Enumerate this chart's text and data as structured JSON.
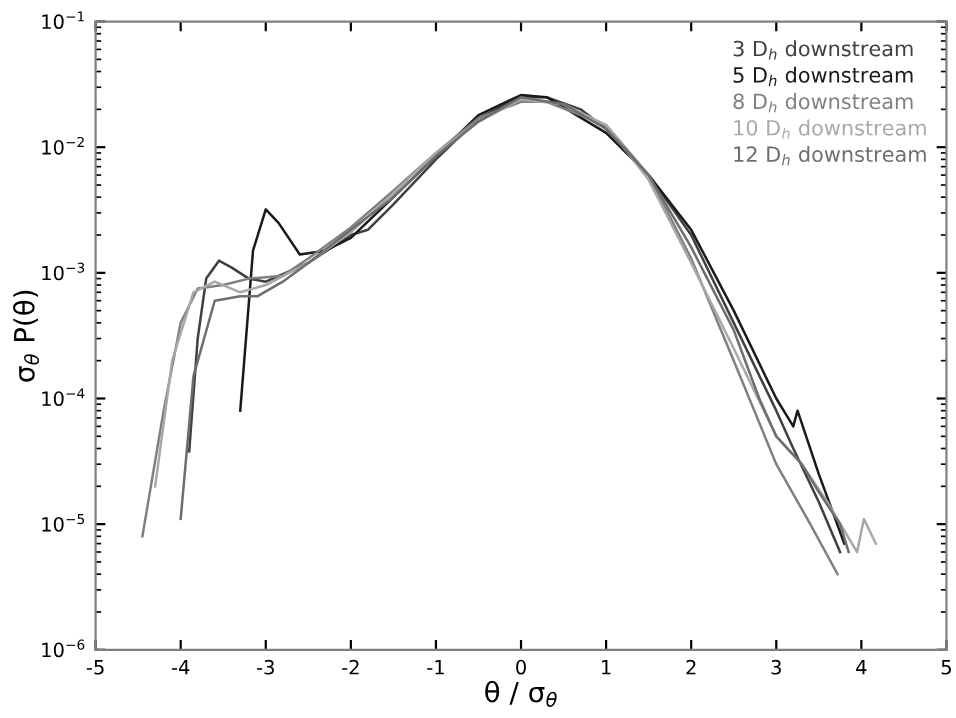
{
  "chart_data": {
    "type": "line",
    "xlabel": "θ / σ$_{θ}$",
    "ylabel": "σ$_{θ}$ P(θ)",
    "log": "y",
    "grid": false,
    "legend": "top right",
    "marker": "none",
    "line_style": "solid",
    "xlim": [
      -5,
      5
    ],
    "xticks": [
      -5,
      -4,
      -3,
      -2,
      -1,
      0,
      1,
      2,
      3,
      4,
      5
    ],
    "ylim": [
      1e-06,
      0.1
    ],
    "yticks": [
      {
        "value": 1e-06,
        "label": "10$^{−6}$"
      },
      {
        "value": 1e-05,
        "label": "10$^{−5}$"
      },
      {
        "value": 0.0001,
        "label": "10$^{−4}$"
      },
      {
        "value": 0.001,
        "label": "10$^{−3}$"
      },
      {
        "value": 0.01,
        "label": "10$^{−2}$"
      },
      {
        "value": 0.1,
        "label": "10$^{−1}$"
      }
    ],
    "series": [
      {
        "name": "3 D$_{h}$ downstream",
        "color": "#404040",
        "x": [
          -3.9,
          -3.8,
          -3.7,
          -3.55,
          -3.4,
          -3.2,
          -3.0,
          -2.5,
          -2.0,
          -1.8,
          -1.5,
          -1,
          -0.5,
          0,
          0.3,
          0.7,
          1,
          1.5,
          2,
          2.5,
          3,
          3.2,
          3.5,
          3.75
        ],
        "values": [
          3.8e-05,
          0.0003,
          0.0009,
          0.00125,
          0.0011,
          0.0009,
          0.00085,
          0.0012,
          0.002,
          0.0022,
          0.0035,
          0.008,
          0.017,
          0.025,
          0.025,
          0.02,
          0.014,
          0.006,
          0.002,
          0.0004,
          8e-05,
          4e-05,
          1.5e-05,
          6e-06
        ]
      },
      {
        "name": "5 D$_{h}$ downstream",
        "color": "#1a1a1a",
        "x": [
          -3.3,
          -3.15,
          -3.0,
          -2.85,
          -2.6,
          -2.3,
          -2,
          -1.5,
          -1,
          -0.5,
          0,
          0.3,
          1,
          1.5,
          2,
          2.5,
          3,
          3.2,
          3.25,
          3.5,
          3.8
        ],
        "values": [
          8e-05,
          0.0015,
          0.0032,
          0.0025,
          0.0014,
          0.0015,
          0.0019,
          0.004,
          0.0085,
          0.018,
          0.026,
          0.025,
          0.013,
          0.006,
          0.0022,
          0.0005,
          0.0001,
          6e-05,
          8e-05,
          2.5e-05,
          7e-06
        ]
      },
      {
        "name": "8 D$_{h}$ downstream",
        "color": "#808080",
        "x": [
          -4.45,
          -4.2,
          -4.0,
          -3.8,
          -3.5,
          -3.2,
          -2.8,
          -2.5,
          -2,
          -1.5,
          -1,
          -0.5,
          0,
          0.3,
          1,
          1.5,
          2,
          2.5,
          3,
          3.4,
          3.72
        ],
        "values": [
          8e-06,
          8e-05,
          0.0004,
          0.00075,
          0.0008,
          0.0009,
          0.00095,
          0.0013,
          0.0023,
          0.0045,
          0.009,
          0.017,
          0.023,
          0.023,
          0.015,
          0.006,
          0.0013,
          0.0002,
          3e-05,
          1e-05,
          4e-06
        ]
      },
      {
        "name": "10 D$_{h}$ downstream",
        "color": "#a8a8a8",
        "x": [
          -4.3,
          -4.1,
          -3.85,
          -3.6,
          -3.3,
          -3.0,
          -2.5,
          -2,
          -1.5,
          -1,
          -0.5,
          0,
          0.5,
          1,
          1.5,
          2,
          2.5,
          3,
          3.3,
          3.6,
          3.95,
          4.03,
          4.17
        ],
        "values": [
          2e-05,
          0.0002,
          0.0007,
          0.00085,
          0.0007,
          0.0008,
          0.0012,
          0.0021,
          0.0043,
          0.009,
          0.016,
          0.024,
          0.022,
          0.015,
          0.0055,
          0.0012,
          0.00025,
          5e-05,
          3e-05,
          1.5e-05,
          6e-06,
          1.1e-05,
          7e-06
        ]
      },
      {
        "name": "12 D$_{h}$ downstream",
        "color": "#6e6e6e",
        "x": [
          -4.0,
          -3.85,
          -3.6,
          -3.3,
          -3.1,
          -2.8,
          -2.5,
          -2,
          -1.5,
          -1,
          -0.5,
          0,
          0.5,
          1,
          1.5,
          2,
          2.5,
          2.8,
          3,
          3.3,
          3.5,
          3.75,
          3.85
        ],
        "values": [
          1.1e-05,
          0.00015,
          0.0006,
          0.00065,
          0.00065,
          0.00085,
          0.0012,
          0.0022,
          0.004,
          0.0085,
          0.016,
          0.025,
          0.022,
          0.014,
          0.006,
          0.0016,
          0.00035,
          0.0001,
          5e-05,
          3e-05,
          1.8e-05,
          1e-05,
          6e-06
        ]
      }
    ]
  }
}
